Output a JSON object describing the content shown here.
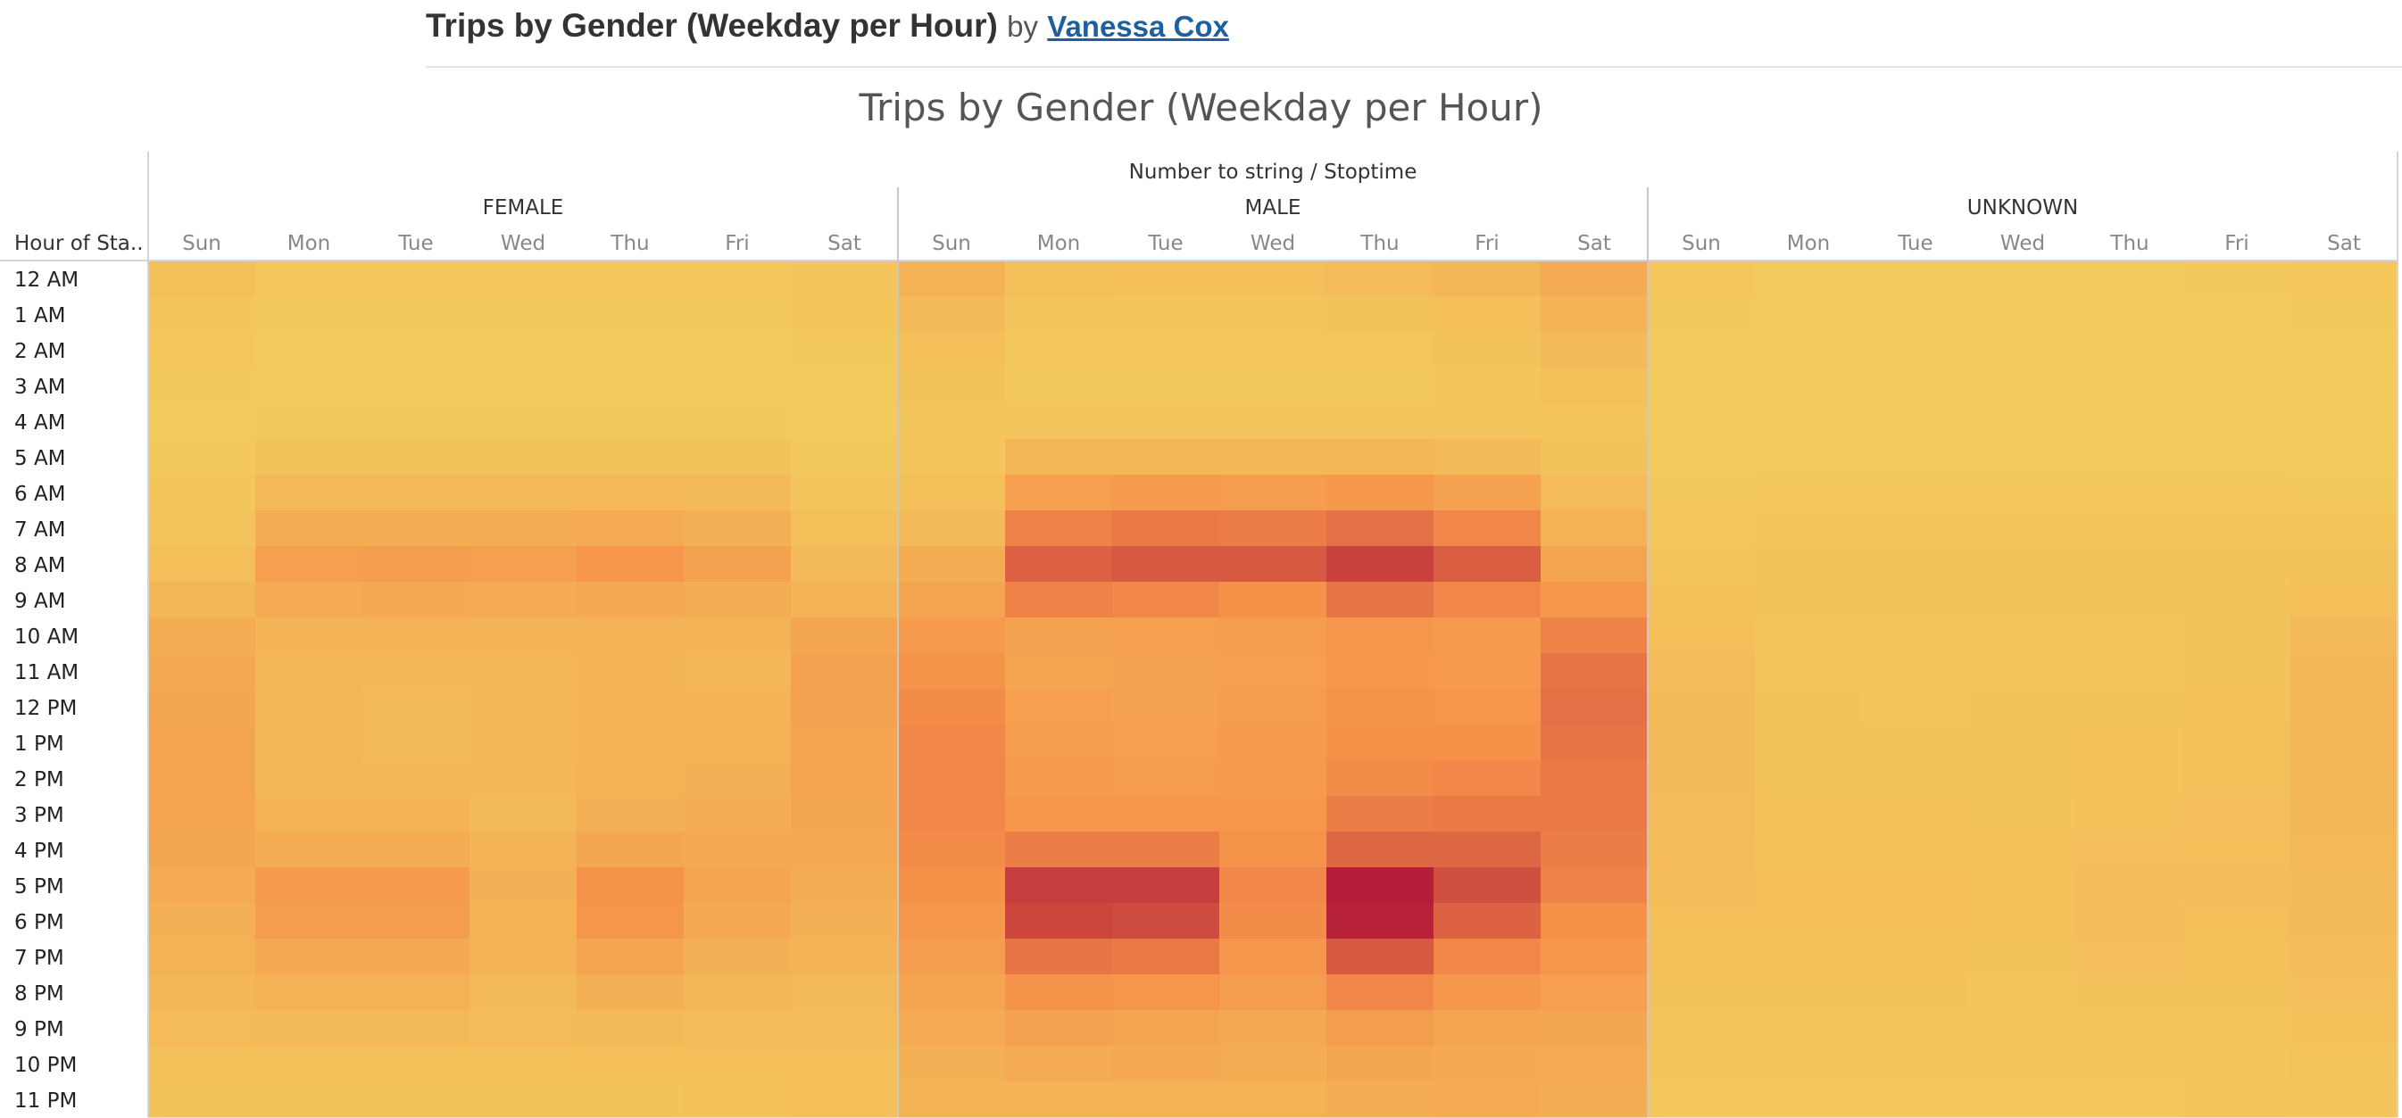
{
  "header": {
    "title": "Trips by Gender (Weekday per Hour)",
    "by": "by",
    "author": "Vanessa Cox"
  },
  "chart_data": {
    "type": "heatmap",
    "title": "Trips by Gender (Weekday per Hour)",
    "column_field_label": "Number to string / Stoptime",
    "row_field_label": "Hour of Sta..",
    "groups": [
      "FEMALE",
      "MALE",
      "UNKNOWN"
    ],
    "days": [
      "Sun",
      "Mon",
      "Tue",
      "Wed",
      "Thu",
      "Fri",
      "Sat"
    ],
    "hours": [
      "12 AM",
      "1 AM",
      "2 AM",
      "3 AM",
      "4 AM",
      "5 AM",
      "6 AM",
      "7 AM",
      "8 AM",
      "9 AM",
      "10 AM",
      "11 AM",
      "12 PM",
      "1 PM",
      "2 PM",
      "3 PM",
      "4 PM",
      "5 PM",
      "6 PM",
      "7 PM",
      "8 PM",
      "9 PM",
      "10 PM",
      "11 PM"
    ],
    "color_scale": {
      "low": "#f3cc5e",
      "mid": "#f6914a",
      "high": "#b41c38"
    },
    "intensity_scale": [
      0,
      1
    ],
    "values": {
      "FEMALE": [
        [
          0.1,
          0.04,
          0.04,
          0.04,
          0.04,
          0.04,
          0.06
        ],
        [
          0.06,
          0.03,
          0.03,
          0.03,
          0.03,
          0.03,
          0.05
        ],
        [
          0.04,
          0.02,
          0.02,
          0.02,
          0.02,
          0.02,
          0.03
        ],
        [
          0.03,
          0.02,
          0.02,
          0.02,
          0.02,
          0.02,
          0.02
        ],
        [
          0.02,
          0.03,
          0.03,
          0.03,
          0.03,
          0.03,
          0.02
        ],
        [
          0.03,
          0.08,
          0.08,
          0.08,
          0.08,
          0.08,
          0.03
        ],
        [
          0.05,
          0.17,
          0.17,
          0.17,
          0.17,
          0.15,
          0.06
        ],
        [
          0.07,
          0.26,
          0.26,
          0.26,
          0.28,
          0.24,
          0.1
        ],
        [
          0.12,
          0.38,
          0.4,
          0.38,
          0.46,
          0.36,
          0.16
        ],
        [
          0.18,
          0.28,
          0.3,
          0.28,
          0.3,
          0.26,
          0.2
        ],
        [
          0.26,
          0.2,
          0.2,
          0.2,
          0.2,
          0.2,
          0.32
        ],
        [
          0.3,
          0.18,
          0.18,
          0.18,
          0.2,
          0.18,
          0.36
        ],
        [
          0.32,
          0.18,
          0.16,
          0.18,
          0.2,
          0.2,
          0.36
        ],
        [
          0.34,
          0.18,
          0.16,
          0.18,
          0.2,
          0.22,
          0.34
        ],
        [
          0.34,
          0.18,
          0.18,
          0.18,
          0.22,
          0.24,
          0.34
        ],
        [
          0.34,
          0.2,
          0.2,
          0.16,
          0.24,
          0.26,
          0.32
        ],
        [
          0.32,
          0.26,
          0.26,
          0.2,
          0.32,
          0.3,
          0.3
        ],
        [
          0.28,
          0.42,
          0.42,
          0.24,
          0.48,
          0.34,
          0.26
        ],
        [
          0.24,
          0.4,
          0.4,
          0.22,
          0.46,
          0.3,
          0.24
        ],
        [
          0.22,
          0.3,
          0.3,
          0.2,
          0.34,
          0.24,
          0.2
        ],
        [
          0.18,
          0.22,
          0.22,
          0.16,
          0.24,
          0.18,
          0.16
        ],
        [
          0.14,
          0.16,
          0.16,
          0.14,
          0.16,
          0.14,
          0.14
        ],
        [
          0.1,
          0.1,
          0.1,
          0.1,
          0.12,
          0.12,
          0.12
        ],
        [
          0.08,
          0.08,
          0.08,
          0.08,
          0.08,
          0.1,
          0.12
        ]
      ],
      "MALE": [
        [
          0.22,
          0.1,
          0.12,
          0.12,
          0.14,
          0.18,
          0.28
        ],
        [
          0.16,
          0.06,
          0.06,
          0.06,
          0.08,
          0.12,
          0.2
        ],
        [
          0.12,
          0.04,
          0.04,
          0.04,
          0.04,
          0.08,
          0.16
        ],
        [
          0.08,
          0.03,
          0.03,
          0.03,
          0.03,
          0.05,
          0.1
        ],
        [
          0.05,
          0.06,
          0.06,
          0.06,
          0.06,
          0.06,
          0.06
        ],
        [
          0.06,
          0.18,
          0.18,
          0.18,
          0.18,
          0.16,
          0.08
        ],
        [
          0.1,
          0.38,
          0.42,
          0.4,
          0.44,
          0.36,
          0.14
        ],
        [
          0.16,
          0.56,
          0.6,
          0.58,
          0.64,
          0.54,
          0.22
        ],
        [
          0.26,
          0.7,
          0.74,
          0.74,
          0.84,
          0.72,
          0.34
        ],
        [
          0.34,
          0.56,
          0.54,
          0.5,
          0.62,
          0.54,
          0.44
        ],
        [
          0.42,
          0.36,
          0.38,
          0.4,
          0.46,
          0.42,
          0.56
        ],
        [
          0.48,
          0.34,
          0.36,
          0.38,
          0.44,
          0.42,
          0.62
        ],
        [
          0.52,
          0.38,
          0.36,
          0.4,
          0.48,
          0.46,
          0.64
        ],
        [
          0.54,
          0.4,
          0.38,
          0.42,
          0.5,
          0.5,
          0.62
        ],
        [
          0.54,
          0.42,
          0.4,
          0.42,
          0.52,
          0.54,
          0.6
        ],
        [
          0.54,
          0.46,
          0.46,
          0.44,
          0.58,
          0.6,
          0.6
        ],
        [
          0.52,
          0.58,
          0.58,
          0.48,
          0.68,
          0.68,
          0.58
        ],
        [
          0.5,
          0.86,
          0.86,
          0.54,
          1.0,
          0.78,
          0.56
        ],
        [
          0.44,
          0.82,
          0.8,
          0.52,
          0.98,
          0.7,
          0.5
        ],
        [
          0.4,
          0.62,
          0.6,
          0.46,
          0.74,
          0.54,
          0.44
        ],
        [
          0.34,
          0.48,
          0.46,
          0.4,
          0.54,
          0.44,
          0.38
        ],
        [
          0.28,
          0.36,
          0.34,
          0.3,
          0.4,
          0.34,
          0.32
        ],
        [
          0.24,
          0.28,
          0.3,
          0.26,
          0.32,
          0.3,
          0.28
        ],
        [
          0.2,
          0.2,
          0.22,
          0.22,
          0.26,
          0.28,
          0.26
        ]
      ],
      "UNKNOWN": [
        [
          0.04,
          0.02,
          0.02,
          0.02,
          0.02,
          0.03,
          0.04
        ],
        [
          0.03,
          0.02,
          0.02,
          0.02,
          0.02,
          0.02,
          0.03
        ],
        [
          0.02,
          0.01,
          0.01,
          0.01,
          0.01,
          0.01,
          0.02
        ],
        [
          0.02,
          0.01,
          0.01,
          0.01,
          0.01,
          0.01,
          0.01
        ],
        [
          0.01,
          0.01,
          0.01,
          0.01,
          0.01,
          0.01,
          0.01
        ],
        [
          0.02,
          0.02,
          0.02,
          0.02,
          0.02,
          0.02,
          0.02
        ],
        [
          0.03,
          0.04,
          0.04,
          0.04,
          0.04,
          0.04,
          0.03
        ],
        [
          0.04,
          0.06,
          0.06,
          0.06,
          0.06,
          0.06,
          0.05
        ],
        [
          0.06,
          0.08,
          0.08,
          0.08,
          0.08,
          0.08,
          0.08
        ],
        [
          0.09,
          0.08,
          0.08,
          0.08,
          0.08,
          0.08,
          0.12
        ],
        [
          0.12,
          0.07,
          0.07,
          0.07,
          0.07,
          0.08,
          0.16
        ],
        [
          0.14,
          0.07,
          0.07,
          0.07,
          0.07,
          0.08,
          0.18
        ],
        [
          0.15,
          0.08,
          0.07,
          0.08,
          0.08,
          0.09,
          0.19
        ],
        [
          0.15,
          0.08,
          0.08,
          0.08,
          0.09,
          0.1,
          0.19
        ],
        [
          0.15,
          0.08,
          0.08,
          0.08,
          0.09,
          0.1,
          0.18
        ],
        [
          0.14,
          0.09,
          0.09,
          0.08,
          0.1,
          0.11,
          0.18
        ],
        [
          0.14,
          0.1,
          0.1,
          0.09,
          0.11,
          0.12,
          0.17
        ],
        [
          0.13,
          0.12,
          0.12,
          0.09,
          0.13,
          0.13,
          0.16
        ],
        [
          0.12,
          0.12,
          0.12,
          0.09,
          0.13,
          0.12,
          0.15
        ],
        [
          0.1,
          0.1,
          0.1,
          0.08,
          0.11,
          0.1,
          0.13
        ],
        [
          0.08,
          0.08,
          0.08,
          0.07,
          0.08,
          0.08,
          0.11
        ],
        [
          0.06,
          0.06,
          0.06,
          0.06,
          0.06,
          0.06,
          0.09
        ],
        [
          0.05,
          0.05,
          0.05,
          0.05,
          0.05,
          0.05,
          0.07
        ],
        [
          0.04,
          0.04,
          0.04,
          0.04,
          0.04,
          0.05,
          0.06
        ]
      ]
    }
  }
}
